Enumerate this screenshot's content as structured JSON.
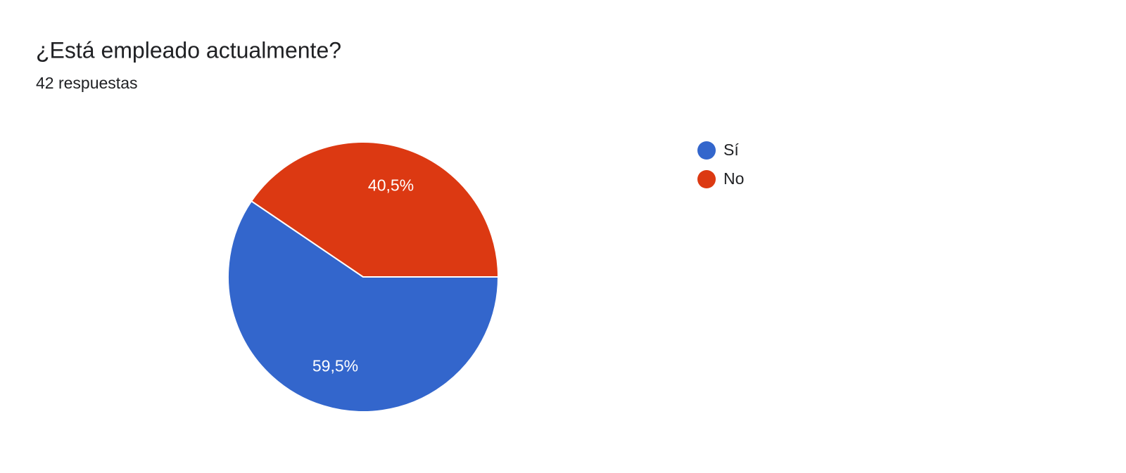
{
  "chart_data": {
    "type": "pie",
    "title": "¿Está empleado actualmente?",
    "subtitle": "42 respuestas",
    "categories": [
      "Sí",
      "No"
    ],
    "values": [
      59.5,
      40.5
    ],
    "value_labels": [
      "59,5%",
      "40,5%"
    ],
    "colors": [
      "#3366cc",
      "#dc3912"
    ],
    "legend": "right"
  }
}
